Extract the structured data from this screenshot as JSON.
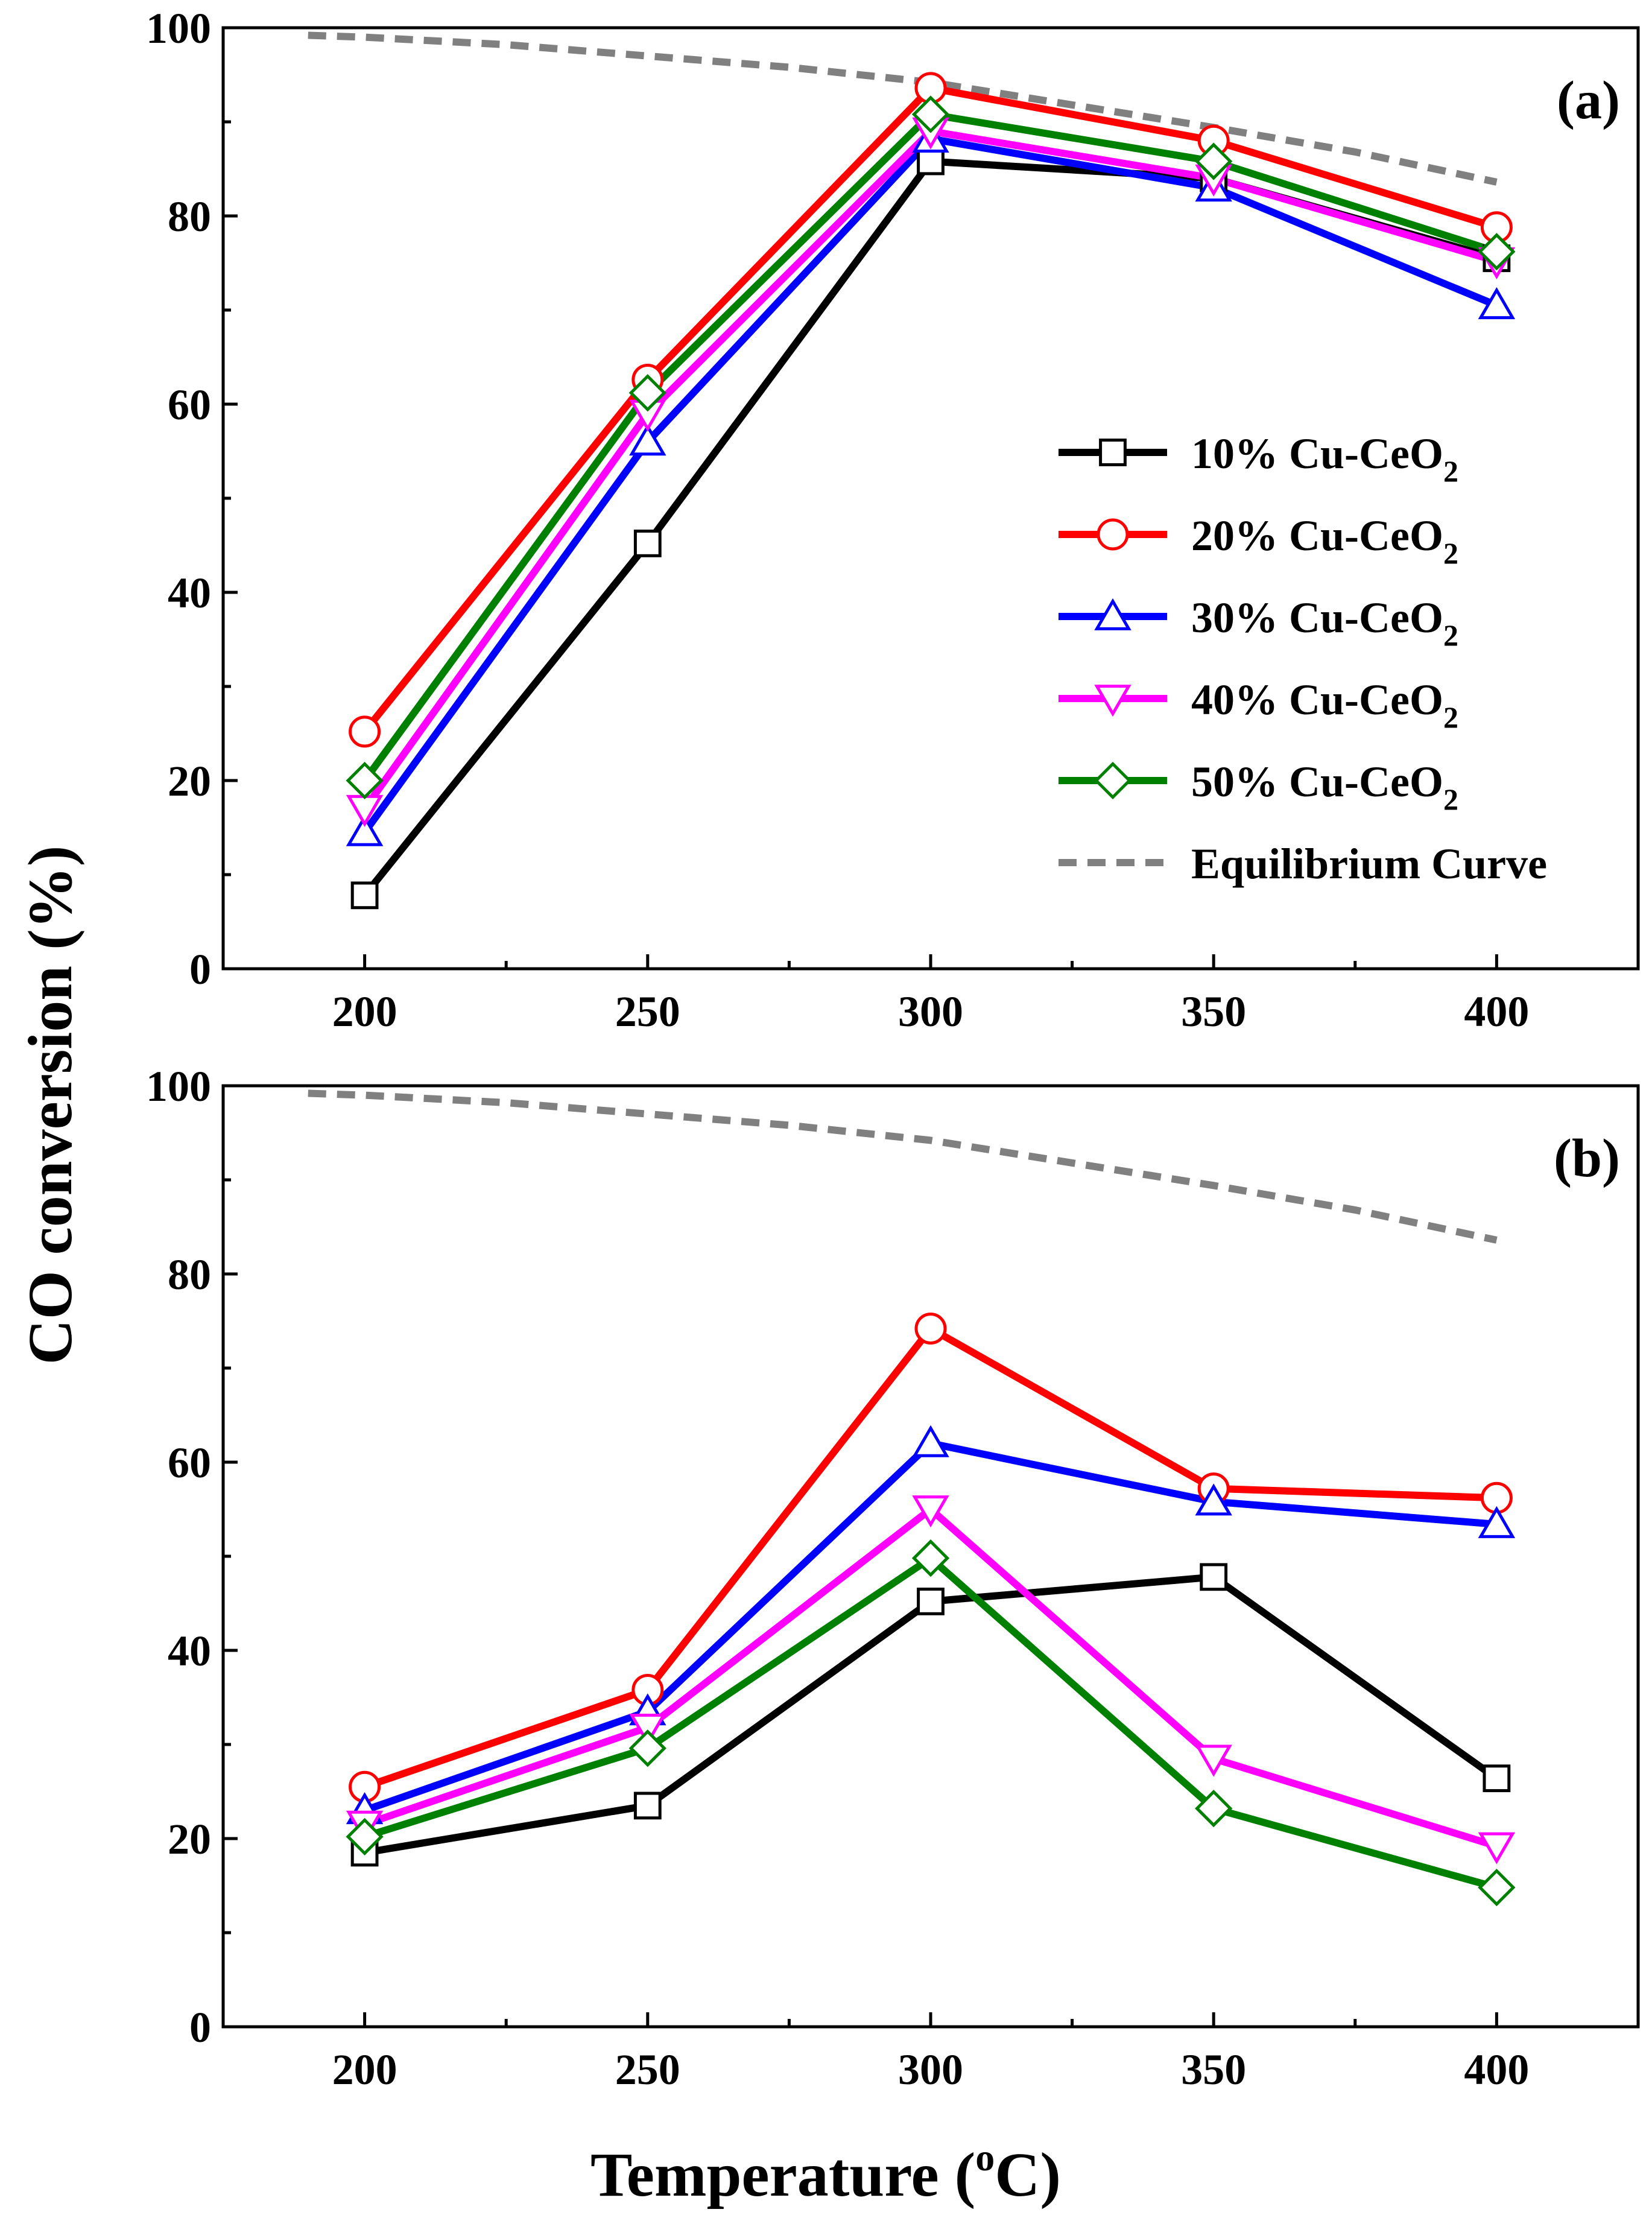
{
  "chart_data": [
    {
      "type": "line",
      "panel_label": "(a)",
      "x": [
        200,
        250,
        300,
        350,
        400
      ],
      "xlim": [
        175,
        425
      ],
      "ylim": [
        0,
        100
      ],
      "x_ticks": [
        "200",
        "250",
        "300",
        "350",
        "400"
      ],
      "y_ticks": [
        "0",
        "20",
        "40",
        "60",
        "80",
        "100"
      ],
      "xlabel": "",
      "ylabel": "CO conversion (%)",
      "legend_position": "center-right",
      "series": [
        {
          "name": "10% Cu-CeO",
          "subscript": "2",
          "color": "#000000",
          "marker": "square",
          "values": [
            7.8,
            45.2,
            85.8,
            84.0,
            75.5
          ]
        },
        {
          "name": "20% Cu-CeO",
          "subscript": "2",
          "color": "#ff0000",
          "marker": "circle",
          "values": [
            25.2,
            62.6,
            93.6,
            88.0,
            78.8
          ]
        },
        {
          "name": "30% Cu-CeO",
          "subscript": "2",
          "color": "#0000ff",
          "marker": "triangle-up",
          "values": [
            14.5,
            56.0,
            88.2,
            83.0,
            70.5
          ]
        },
        {
          "name": "40% Cu-CeO",
          "subscript": "2",
          "color": "#ff00ff",
          "marker": "triangle-down",
          "values": [
            17.0,
            59.0,
            89.0,
            84.0,
            75.2
          ]
        },
        {
          "name": "50% Cu-CeO",
          "subscript": "2",
          "color": "#008000",
          "marker": "diamond",
          "values": [
            20.0,
            61.2,
            90.8,
            85.8,
            76.2
          ]
        }
      ],
      "equilibrium": {
        "name": "Equilibrium Curve",
        "color": "#808080",
        "x": [
          190,
          200,
          225,
          250,
          275,
          300,
          325,
          350,
          375,
          400
        ],
        "y": [
          99.2,
          99.0,
          98.2,
          97.0,
          95.8,
          94.2,
          91.8,
          89.4,
          86.8,
          83.6
        ]
      }
    },
    {
      "type": "line",
      "panel_label": "(b)",
      "x": [
        200,
        250,
        300,
        350,
        400
      ],
      "xlim": [
        175,
        425
      ],
      "ylim": [
        0,
        100
      ],
      "x_ticks": [
        "200",
        "250",
        "300",
        "350",
        "400"
      ],
      "y_ticks": [
        "0",
        "20",
        "40",
        "60",
        "80",
        "100"
      ],
      "xlabel": "Temperature (oC)",
      "ylabel": "CO conversion (%)",
      "series": [
        {
          "name": "10% Cu-CeO",
          "subscript": "2",
          "color": "#000000",
          "marker": "square",
          "values": [
            18.5,
            23.5,
            45.2,
            47.8,
            26.4
          ]
        },
        {
          "name": "20% Cu-CeO",
          "subscript": "2",
          "color": "#ff0000",
          "marker": "circle",
          "values": [
            25.5,
            35.8,
            74.2,
            57.2,
            56.2
          ]
        },
        {
          "name": "30% Cu-CeO",
          "subscript": "2",
          "color": "#0000ff",
          "marker": "triangle-up",
          "values": [
            23.0,
            33.5,
            62.0,
            55.8,
            53.4
          ]
        },
        {
          "name": "40% Cu-CeO",
          "subscript": "2",
          "color": "#ff00ff",
          "marker": "triangle-down",
          "values": [
            21.5,
            31.8,
            55.0,
            28.5,
            19.2
          ]
        },
        {
          "name": "50% Cu-CeO",
          "subscript": "2",
          "color": "#008000",
          "marker": "diamond",
          "values": [
            20.2,
            29.6,
            49.8,
            23.2,
            14.8
          ]
        }
      ],
      "equilibrium": {
        "name": "Equilibrium Curve",
        "color": "#808080",
        "x": [
          190,
          200,
          225,
          250,
          275,
          300,
          325,
          350,
          375,
          400
        ],
        "y": [
          99.2,
          99.0,
          98.2,
          97.0,
          95.8,
          94.2,
          91.8,
          89.4,
          86.8,
          83.6
        ]
      }
    }
  ],
  "axis_titles": {
    "y": "CO conversion (%)",
    "x_prefix": "Temperature (",
    "x_sup": "o",
    "x_suffix": "C)"
  }
}
